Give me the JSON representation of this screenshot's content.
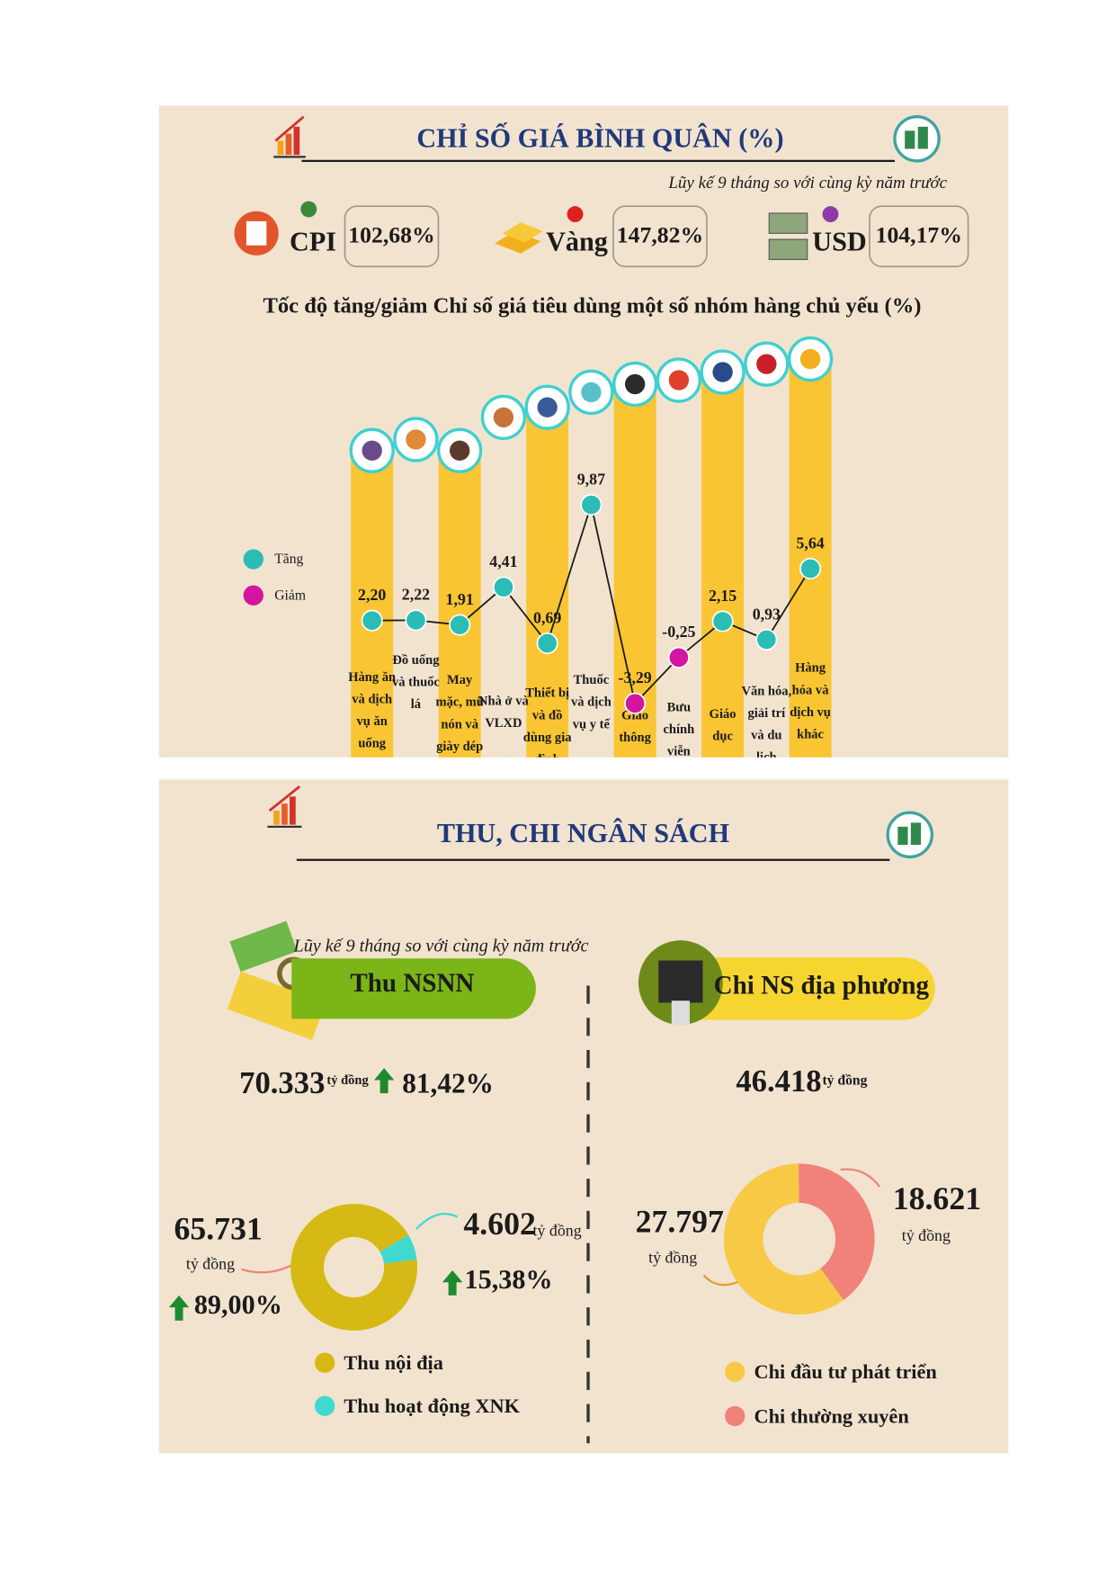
{
  "price_section": {
    "title": "CHỈ SỐ GIÁ BÌNH QUÂN (%)",
    "subtitle": "Lũy kế 9 tháng so với cùng kỳ năm trước",
    "indices": [
      {
        "name": "CPI",
        "color": "#3a8a3a",
        "label": "102,68%"
      },
      {
        "name": "Vàng",
        "color": "#e0201f",
        "label": "147,82%"
      },
      {
        "name": "USD",
        "color": "#8e3aa8",
        "label": "104,17%"
      }
    ]
  },
  "budget_section": {
    "title": "THU, CHI NGÂN SÁCH",
    "subtitle": "Lũy kế 9 tháng so với cùng kỳ năm trước",
    "revenue": {
      "title": "Thu NSNN",
      "total": "70.333",
      "unit": "tỷ đồng",
      "growth": "81,42%"
    },
    "expense": {
      "title": "Chi NS địa phương",
      "total": "46.418",
      "unit": "tỷ đồng"
    }
  },
  "chart_data": [
    {
      "type": "line",
      "title": "Tốc độ tăng/giảm Chỉ số giá tiêu dùng một số nhóm hàng chủ yếu (%)",
      "categories": [
        "Hàng ăn và dịch vụ ăn uống",
        "Đồ uống và thuốc lá",
        "May mặc, mũ nón và giày dép",
        "Nhà ở và VLXD",
        "Thiết bị và đồ dùng gia đình",
        "Thuốc và dịch vụ y tế",
        "Giao thông",
        "Bưu chính viễn thông",
        "Giáo dục",
        "Văn hóa, giải trí và du lịch",
        "Hàng hóa và dịch vụ khác"
      ],
      "values": [
        2.2,
        2.22,
        1.91,
        4.41,
        0.69,
        9.87,
        -3.29,
        -0.25,
        2.15,
        0.93,
        5.64
      ],
      "value_labels": [
        "2,20",
        "2,22",
        "1,91",
        "4,41",
        "0,69",
        "9,87",
        "-3,29",
        "-0,25",
        "2,15",
        "0,93",
        "5,64"
      ],
      "legend": [
        {
          "name": "Tăng",
          "color": "#2bbdb5"
        },
        {
          "name": "Giảm",
          "color": "#d4159f"
        }
      ],
      "bar_color": "#f9c532",
      "line_color": "#1b1b1b"
    },
    {
      "type": "donut",
      "categories": [
        "Thu nội địa",
        "Thu hoạt động XNK"
      ],
      "values": [
        65731,
        4602
      ],
      "value_labels": [
        "65.731",
        "4.602"
      ],
      "growth_labels": [
        "89,00%",
        "15,38%"
      ],
      "unit": "tỷ đồng",
      "colors": [
        "#d6b914",
        "#3fd9d0"
      ]
    },
    {
      "type": "donut",
      "categories": [
        "Chi đầu tư phát triển",
        "Chi thường xuyên"
      ],
      "values": [
        27797,
        18621
      ],
      "value_labels": [
        "27.797",
        "18.621"
      ],
      "unit": "tỷ đồng",
      "colors": [
        "#f8c945",
        "#f08279"
      ]
    }
  ]
}
